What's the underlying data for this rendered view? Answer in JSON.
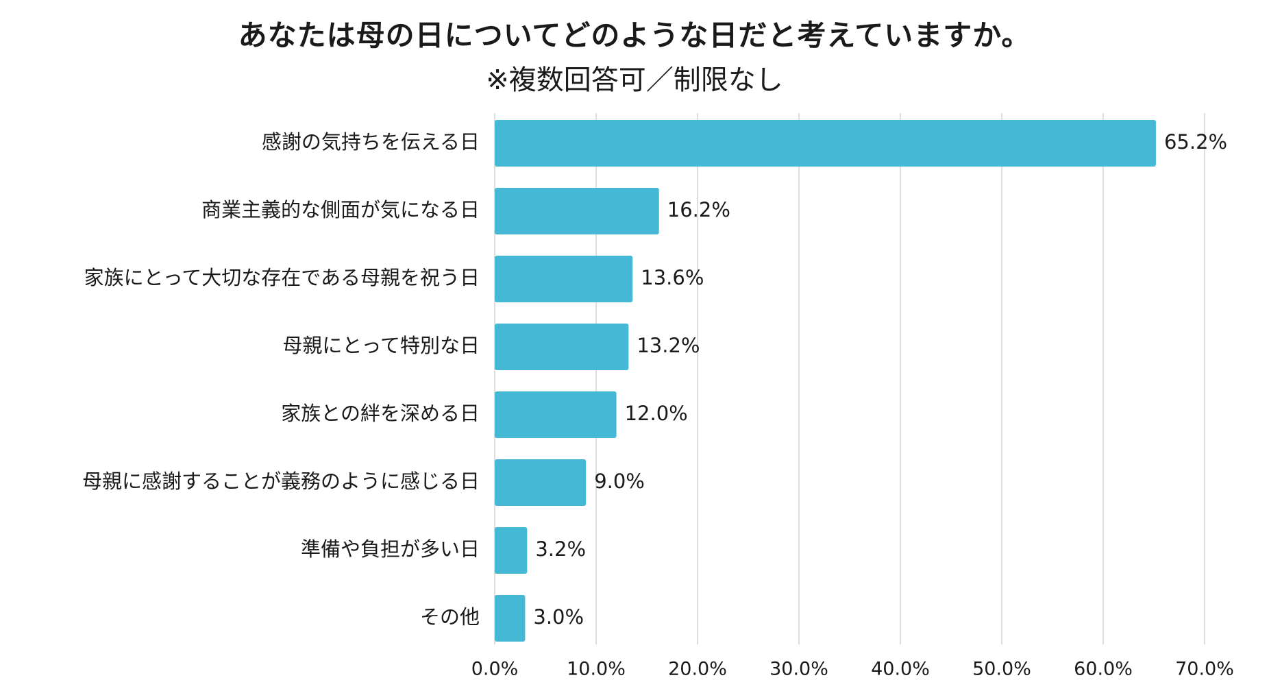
{
  "chart_data": {
    "type": "bar",
    "orientation": "horizontal",
    "title": "あなたは母の日についてどのような日だと考えていますか。",
    "subtitle": "※複数回答可／制限なし",
    "categories": [
      "感謝の気持ちを伝える日",
      "商業主義的な側面が気になる日",
      "家族にとって大切な存在である母親を祝う日",
      "母親にとって特別な日",
      "家族との絆を深める日",
      "母親に感謝することが義務のように感じる日",
      "準備や負担が多い日",
      "その他"
    ],
    "values": [
      65.2,
      16.2,
      13.6,
      13.2,
      12.0,
      9.0,
      3.2,
      3.0
    ],
    "value_labels": [
      "65.2%",
      "16.2%",
      "13.6%",
      "13.2%",
      "12.0%",
      "9.0%",
      "3.2%",
      "3.0%"
    ],
    "xlim": [
      0,
      70
    ],
    "x_ticks": [
      0,
      10,
      20,
      30,
      40,
      50,
      60,
      70
    ],
    "x_tick_labels": [
      "0.0%",
      "10.0%",
      "20.0%",
      "30.0%",
      "40.0%",
      "50.0%",
      "60.0%",
      "70.0%"
    ],
    "xlabel": "",
    "ylabel": "",
    "grid": true,
    "legend": false,
    "bar_color": "#45B8D5",
    "grid_color": "#D4D4D4",
    "text_color": "#1a1a1a"
  }
}
